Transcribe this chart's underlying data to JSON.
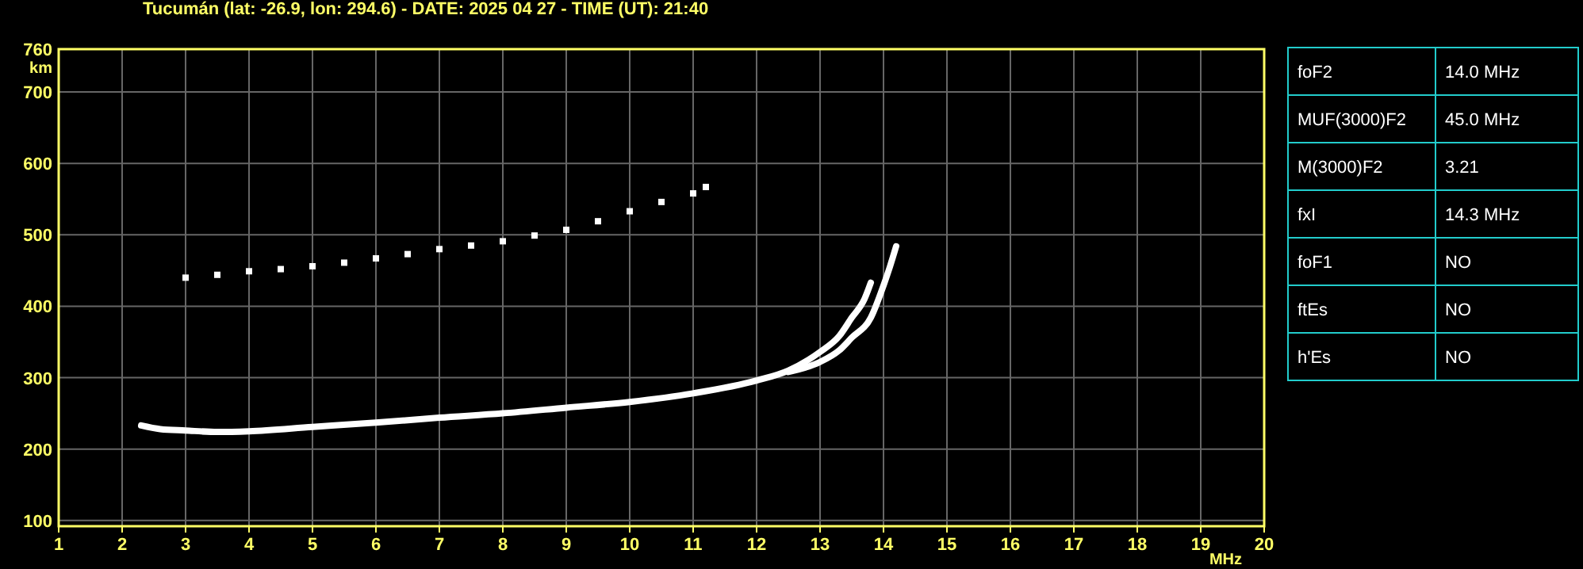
{
  "chart_data": [
    {
      "type": "line",
      "title": "Tucumán (lat: -26.9, lon: 294.6) - DATE: 2025 04 27 - TIME (UT): 21:40",
      "xlabel": "MHz",
      "ylabel": "km",
      "xlim": [
        1,
        20
      ],
      "xticks": [
        1,
        2,
        3,
        4,
        5,
        6,
        7,
        8,
        9,
        10,
        11,
        12,
        13,
        14,
        15,
        16,
        17,
        18,
        19,
        20
      ],
      "ylim": [
        92,
        760
      ],
      "yticks": [
        100,
        200,
        300,
        400,
        500,
        600,
        700,
        760
      ],
      "grid": true,
      "series": [
        {
          "color": "#ffffff",
          "x": [
            2.3,
            2.6,
            3,
            3.5,
            4,
            5,
            6,
            7,
            8,
            9,
            10,
            11,
            12,
            12.5,
            13,
            13.3,
            13.5,
            13.7,
            13.8
          ],
          "values": [
            233,
            228,
            226,
            224,
            225,
            231,
            237,
            244,
            250,
            258,
            266,
            278,
            296,
            310,
            336,
            358,
            384,
            410,
            433
          ]
        },
        {
          "color": "#ffffff",
          "x": [
            12.5,
            13,
            13.3,
            13.5,
            13.8,
            14,
            14.1,
            14.2
          ],
          "values": [
            308,
            322,
            338,
            356,
            384,
            429,
            455,
            484
          ]
        },
        {
          "type": "scatter",
          "marker": "square",
          "color": "#ffffff",
          "x": [
            3,
            3.5,
            4,
            4.5,
            5,
            5.5,
            6,
            6.5,
            7,
            7.5,
            8,
            8.5,
            9,
            9.5,
            10,
            10.5,
            11,
            11.2
          ],
          "values": [
            440,
            444,
            449,
            452,
            456,
            461,
            467,
            473,
            480,
            485,
            491,
            499,
            507,
            519,
            533,
            546,
            558,
            567
          ]
        }
      ]
    },
    {
      "type": "other",
      "categories": [
        "foF2",
        "MUF(3000)F2",
        "M(3000)F2",
        "fxI",
        "foF1",
        "ftEs",
        "h'Es"
      ],
      "value_labels": [
        "14.0 MHz",
        "45.0 MHz",
        "3.21",
        "14.3 MHz",
        "NO",
        "NO",
        "NO"
      ]
    }
  ]
}
